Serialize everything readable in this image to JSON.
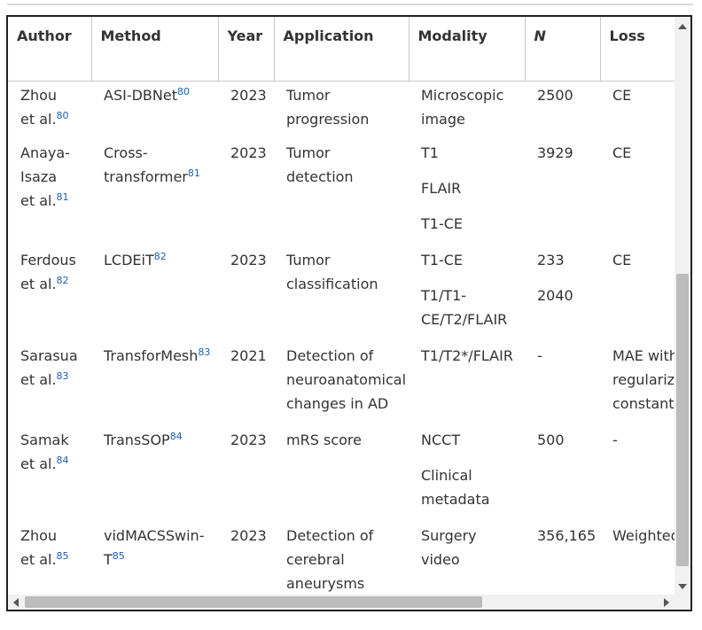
{
  "table": {
    "headers": [
      "Author",
      "Method",
      "Year",
      "Application",
      "Modality",
      "N",
      "Loss"
    ],
    "rows": [
      {
        "author": [
          "Zhou",
          "et al."
        ],
        "author_ref": "80",
        "method": [
          "ASI-DBNet"
        ],
        "method_ref": "80",
        "year": "2023",
        "application": [
          "Tumor",
          "progression"
        ],
        "modality": [
          [
            "Microscopic",
            "image"
          ]
        ],
        "n": [
          "2500"
        ],
        "loss": [
          "CE"
        ]
      },
      {
        "author": [
          "Anaya-",
          "Isaza",
          "et al."
        ],
        "author_ref": "81",
        "method": [
          "Cross-",
          "transformer"
        ],
        "method_ref": "81",
        "year": "2023",
        "application": [
          "Tumor detection"
        ],
        "modality": [
          [
            "T1"
          ],
          [
            "FLAIR"
          ],
          [
            "T1-CE"
          ]
        ],
        "n": [
          "3929"
        ],
        "loss": [
          "CE"
        ]
      },
      {
        "author": [
          "Ferdous",
          "et al."
        ],
        "author_ref": "82",
        "method": [
          "LCDEiT"
        ],
        "method_ref": "82",
        "year": "2023",
        "application": [
          "Tumor",
          "classification"
        ],
        "modality": [
          [
            "T1-CE"
          ],
          [
            "T1/T1-",
            "CE/T2/FLAIR"
          ]
        ],
        "n": [
          "233",
          "2040"
        ],
        "loss": [
          "CE"
        ]
      },
      {
        "author": [
          "Sarasua",
          "et al."
        ],
        "author_ref": "83",
        "method": [
          "TransforMesh"
        ],
        "method_ref": "83",
        "year": "2021",
        "application": [
          "Detection of",
          "neuroanatomical",
          "changes in AD"
        ],
        "modality": [
          [
            "T1/T2*/FLAIR"
          ]
        ],
        "n": [
          "-"
        ],
        "loss": [
          "MAE with",
          "regularization",
          "constant"
        ]
      },
      {
        "author": [
          "Samak",
          "et al."
        ],
        "author_ref": "84",
        "method": [
          "TransSOP"
        ],
        "method_ref": "84",
        "year": "2023",
        "application": [
          "mRS score"
        ],
        "modality": [
          [
            "NCCT"
          ],
          [
            "Clinical",
            "metadata"
          ]
        ],
        "n": [
          "500"
        ],
        "loss": [
          "-"
        ]
      },
      {
        "author": [
          "Zhou",
          "et al."
        ],
        "author_ref": "85",
        "method": [
          "vidMACSSwin-",
          "T"
        ],
        "method_ref": "85",
        "year": "2023",
        "application": [
          "Detection of",
          "cerebral",
          "aneurysms"
        ],
        "modality": [
          [
            "Surgery video"
          ]
        ],
        "n": [
          "356,165"
        ],
        "loss": [
          "Weighted"
        ]
      }
    ]
  },
  "colors": {
    "link": "#1a5fb4",
    "border": "#222222",
    "scrollbar": "#bcbcbc"
  },
  "scroll": {
    "vertical_position": 0.6,
    "horizontal_position": 0.0
  }
}
